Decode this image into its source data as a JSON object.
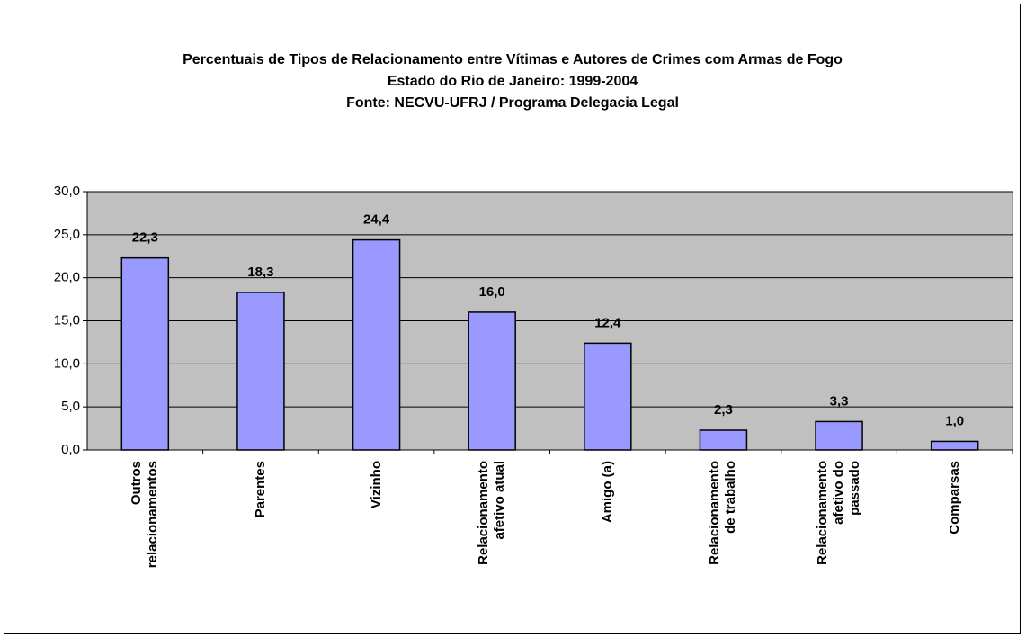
{
  "chart_data": {
    "type": "bar",
    "title": "Percentuais de Tipos de Relacionamento entre Vítimas e Autores de Crimes com Armas de Fogo",
    "subtitle": [
      "Estado do Rio de Janeiro: 1999-2004",
      "Fonte: NECVU-UFRJ / Programa Delegacia Legal"
    ],
    "categories": [
      "Outros relacionamentos",
      "Parentes",
      "Vizinho",
      "Relacionamento afetivo atual",
      "Amigo (a)",
      "Relacionamento de trabalho",
      "Relacionamento afetivo do passado",
      "Comparsas"
    ],
    "values": [
      22.3,
      18.3,
      24.4,
      16.0,
      12.4,
      2.3,
      3.3,
      1.0
    ],
    "value_labels": [
      "22,3",
      "18,3",
      "24,4",
      "16,0",
      "12,4",
      "2,3",
      "3,3",
      "1,0"
    ],
    "color": "#9999ff",
    "plot_background": "#c0c0c0",
    "ylim": [
      0,
      30
    ],
    "yticks": [
      {
        "value": 0,
        "label": "0,0"
      },
      {
        "value": 5,
        "label": "5,0"
      },
      {
        "value": 10,
        "label": "10,0"
      },
      {
        "value": 15,
        "label": "15,0"
      },
      {
        "value": 20,
        "label": "20,0"
      },
      {
        "value": 25,
        "label": "25,0"
      },
      {
        "value": 30,
        "label": "30,0"
      }
    ],
    "grid": true
  }
}
